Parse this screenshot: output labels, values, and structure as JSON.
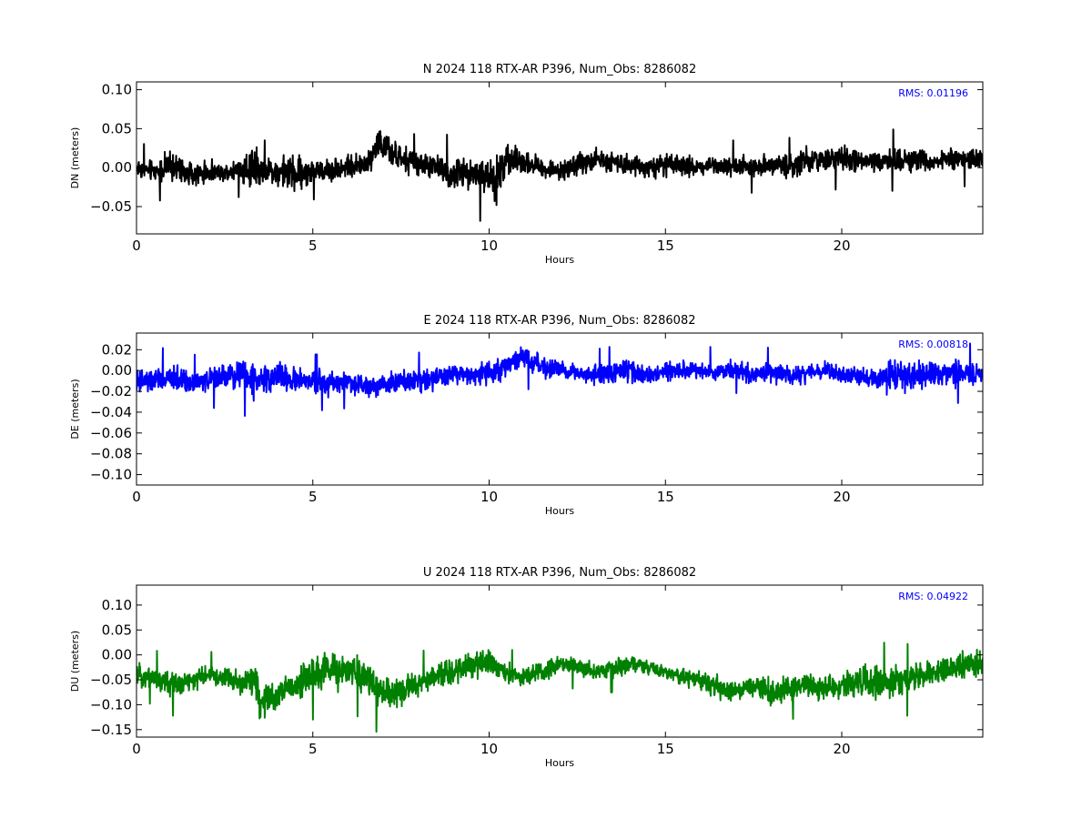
{
  "chart_data": [
    {
      "type": "line",
      "title": "N 2024 118 RTX-AR  P396, Num_Obs: 8286082",
      "xlabel": "Hours",
      "ylabel": "DN (meters)",
      "xlim": [
        0,
        24
      ],
      "ylim": [
        -0.085,
        0.11
      ],
      "x_ticks": [
        0,
        5,
        10,
        15,
        20
      ],
      "x_tick_labels": [
        "0",
        "5",
        "10",
        "15",
        "20"
      ],
      "y_ticks": [
        -0.05,
        0.0,
        0.05,
        0.1
      ],
      "y_tick_labels": [
        "−0.05",
        "0.00",
        "0.05",
        "0.10"
      ],
      "annotation": "RMS:  0.01196",
      "annotation_color": "#0000ff",
      "color": "#000000",
      "grid": false,
      "series": [
        {
          "x": [
            0,
            0.5,
            1.0,
            1.5,
            2.0,
            2.5,
            3.0,
            3.4,
            3.5,
            4.0,
            4.5,
            5.0,
            5.5,
            6.0,
            6.5,
            6.9,
            7.0,
            7.5,
            8.0,
            8.5,
            9.0,
            9.5,
            10.0,
            10.2,
            10.3,
            10.5,
            11.0,
            11.5,
            12.0,
            12.5,
            13.0,
            13.5,
            14.0,
            14.5,
            15.0,
            15.5,
            16.0,
            16.5,
            17.0,
            17.5,
            18.0,
            18.5,
            19.0,
            19.5,
            20.0,
            20.5,
            21.0,
            21.5,
            22.0,
            22.5,
            23.0,
            23.5,
            24.0
          ],
          "y_center": [
            0.0,
            -0.005,
            0.002,
            -0.008,
            -0.007,
            -0.005,
            -0.002,
            0.0,
            -0.003,
            -0.005,
            -0.008,
            -0.005,
            -0.003,
            0.002,
            0.003,
            0.035,
            0.025,
            0.01,
            0.005,
            0.0,
            -0.01,
            -0.005,
            -0.015,
            -0.02,
            -0.005,
            0.01,
            0.008,
            0.0,
            -0.005,
            0.005,
            0.01,
            0.008,
            0.005,
            0.0,
            0.003,
            0.002,
            0.0,
            0.005,
            0.002,
            0.0,
            0.005,
            0.002,
            0.008,
            0.01,
            0.012,
            0.008,
            0.005,
            0.01,
            0.01,
            0.008,
            0.01,
            0.012,
            0.01
          ],
          "amplitude": [
            0.018,
            0.018,
            0.03,
            0.02,
            0.018,
            0.018,
            0.02,
            0.06,
            0.02,
            0.025,
            0.035,
            0.02,
            0.02,
            0.018,
            0.02,
            0.03,
            0.028,
            0.022,
            0.02,
            0.022,
            0.03,
            0.025,
            0.04,
            0.06,
            0.05,
            0.025,
            0.02,
            0.018,
            0.015,
            0.02,
            0.02,
            0.018,
            0.018,
            0.018,
            0.018,
            0.018,
            0.018,
            0.018,
            0.018,
            0.018,
            0.018,
            0.02,
            0.022,
            0.022,
            0.022,
            0.02,
            0.02,
            0.022,
            0.02,
            0.02,
            0.02,
            0.02,
            0.02
          ]
        }
      ]
    },
    {
      "type": "line",
      "title": "E 2024 118 RTX-AR  P396, Num_Obs: 8286082",
      "xlabel": "Hours",
      "ylabel": "DE (meters)",
      "xlim": [
        0,
        24
      ],
      "ylim": [
        -0.11,
        0.036
      ],
      "x_ticks": [
        0,
        5,
        10,
        15,
        20
      ],
      "x_tick_labels": [
        "0",
        "5",
        "10",
        "15",
        "20"
      ],
      "y_ticks": [
        -0.1,
        -0.08,
        -0.06,
        -0.04,
        -0.02,
        0.0,
        0.02
      ],
      "y_tick_labels": [
        "−0.10",
        "−0.08",
        "−0.06",
        "−0.04",
        "−0.02",
        "0.00",
        "0.02"
      ],
      "annotation": "RMS:  0.00818",
      "annotation_color": "#0000ff",
      "color": "#0000ff",
      "grid": false,
      "series": [
        {
          "x": [
            0,
            0.5,
            1.0,
            1.5,
            2.0,
            2.5,
            3.0,
            3.4,
            3.5,
            4.0,
            4.5,
            5.0,
            5.5,
            6.0,
            6.5,
            7.0,
            7.5,
            8.0,
            8.5,
            9.0,
            9.5,
            10.0,
            10.5,
            11.0,
            11.5,
            12.0,
            12.5,
            13.0,
            13.5,
            14.0,
            14.5,
            15.0,
            15.5,
            16.0,
            16.5,
            17.0,
            17.5,
            18.0,
            18.5,
            19.0,
            19.5,
            20.0,
            20.5,
            21.0,
            21.5,
            22.0,
            22.5,
            23.0,
            23.5,
            24.0
          ],
          "y_center": [
            -0.012,
            -0.01,
            -0.008,
            -0.01,
            -0.01,
            -0.005,
            -0.005,
            -0.01,
            -0.008,
            -0.005,
            -0.01,
            -0.01,
            -0.012,
            -0.01,
            -0.015,
            -0.012,
            -0.01,
            -0.008,
            -0.008,
            -0.002,
            -0.005,
            -0.002,
            0.005,
            0.012,
            0.003,
            0.0,
            -0.002,
            -0.005,
            -0.002,
            0.0,
            -0.005,
            -0.002,
            0.0,
            -0.002,
            0.0,
            0.0,
            -0.005,
            -0.002,
            -0.005,
            -0.003,
            0.0,
            -0.005,
            -0.005,
            -0.008,
            -0.005,
            -0.005,
            -0.002,
            -0.003,
            -0.002,
            -0.005
          ],
          "amplitude": [
            0.018,
            0.016,
            0.018,
            0.014,
            0.014,
            0.018,
            0.02,
            0.025,
            0.02,
            0.02,
            0.016,
            0.014,
            0.016,
            0.014,
            0.016,
            0.014,
            0.014,
            0.014,
            0.016,
            0.014,
            0.014,
            0.016,
            0.014,
            0.016,
            0.014,
            0.012,
            0.012,
            0.014,
            0.014,
            0.016,
            0.014,
            0.014,
            0.012,
            0.012,
            0.014,
            0.012,
            0.012,
            0.014,
            0.012,
            0.012,
            0.012,
            0.012,
            0.012,
            0.016,
            0.02,
            0.02,
            0.018,
            0.016,
            0.016,
            0.016
          ]
        }
      ]
    },
    {
      "type": "line",
      "title": "U 2024 118 RTX-AR  P396, Num_Obs: 8286082",
      "xlabel": "Hours",
      "ylabel": "DU (meters)",
      "xlim": [
        0,
        24
      ],
      "ylim": [
        -0.165,
        0.14
      ],
      "x_ticks": [
        0,
        5,
        10,
        15,
        20
      ],
      "x_tick_labels": [
        "0",
        "5",
        "10",
        "15",
        "20"
      ],
      "y_ticks": [
        -0.15,
        -0.1,
        -0.05,
        0.0,
        0.05,
        0.1
      ],
      "y_tick_labels": [
        "−0.15",
        "−0.10",
        "−0.05",
        "0.00",
        "0.05",
        "0.10"
      ],
      "annotation": "RMS:  0.04922",
      "annotation_color": "#0000ff",
      "color": "#008000",
      "grid": false,
      "series": [
        {
          "x": [
            0,
            0.5,
            1.0,
            1.5,
            2.0,
            2.5,
            3.0,
            3.4,
            3.5,
            4.0,
            4.5,
            5.0,
            5.5,
            6.0,
            6.5,
            7.0,
            7.5,
            8.0,
            8.5,
            9.0,
            9.5,
            10.0,
            10.5,
            11.0,
            11.5,
            12.0,
            12.5,
            13.0,
            13.5,
            14.0,
            14.5,
            15.0,
            15.5,
            16.0,
            16.5,
            17.0,
            17.5,
            18.0,
            18.5,
            19.0,
            19.5,
            20.0,
            20.5,
            21.0,
            21.5,
            22.0,
            22.5,
            23.0,
            23.5,
            24.0
          ],
          "y_center": [
            -0.04,
            -0.045,
            -0.06,
            -0.055,
            -0.04,
            -0.045,
            -0.06,
            -0.04,
            -0.1,
            -0.08,
            -0.06,
            -0.04,
            -0.03,
            -0.035,
            -0.04,
            -0.08,
            -0.07,
            -0.06,
            -0.04,
            -0.035,
            -0.02,
            -0.01,
            -0.04,
            -0.045,
            -0.035,
            -0.015,
            -0.025,
            -0.035,
            -0.03,
            -0.02,
            -0.025,
            -0.035,
            -0.045,
            -0.05,
            -0.065,
            -0.075,
            -0.06,
            -0.08,
            -0.07,
            -0.06,
            -0.07,
            -0.06,
            -0.05,
            -0.055,
            -0.05,
            -0.05,
            -0.04,
            -0.03,
            -0.015,
            -0.02
          ],
          "amplitude": [
            0.03,
            0.03,
            0.035,
            0.03,
            0.025,
            0.03,
            0.03,
            0.06,
            0.05,
            0.04,
            0.045,
            0.05,
            0.05,
            0.045,
            0.05,
            0.05,
            0.04,
            0.035,
            0.035,
            0.035,
            0.035,
            0.04,
            0.03,
            0.025,
            0.025,
            0.025,
            0.025,
            0.025,
            0.025,
            0.025,
            0.02,
            0.02,
            0.025,
            0.025,
            0.035,
            0.035,
            0.03,
            0.045,
            0.035,
            0.03,
            0.035,
            0.035,
            0.045,
            0.045,
            0.04,
            0.04,
            0.035,
            0.035,
            0.04,
            0.04
          ]
        }
      ]
    }
  ]
}
